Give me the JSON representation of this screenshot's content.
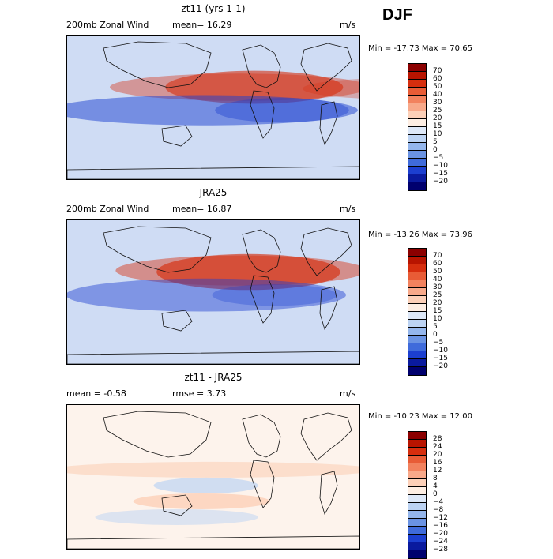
{
  "season": "DJF",
  "panels": [
    {
      "title": "zt11 (yrs 1-1)",
      "field_label": "200mb Zonal Wind",
      "stat1": "mean=  16.29",
      "stat2": "",
      "units": "m/s",
      "minmax": "Min = -17.73 Max =  70.65",
      "colorbar_labels": [
        "70",
        "60",
        "50",
        "40",
        "30",
        "25",
        "20",
        "15",
        "10",
        "5",
        "0",
        "−5",
        "−10",
        "−15",
        "−20"
      ],
      "colorbar_colors": [
        "#8b0000",
        "#b81400",
        "#d62e0e",
        "#e85c36",
        "#f2825e",
        "#f8a98a",
        "#fcd0b8",
        "#fdeee3",
        "#dde8f8",
        "#bcd3f3",
        "#94b6ec",
        "#6a93e3",
        "#3f6bdb",
        "#1c3fd0",
        "#0a1a9e",
        "#00006e"
      ],
      "gradients": [
        {
          "color": "#d62e0e",
          "bands": [
            [
              0.39,
              0.5,
              0.36,
              0.06,
              0.6
            ],
            [
              0.2,
              0.78,
              0.36,
              0.04,
              0.4
            ],
            [
              0.86,
              0.56,
              0.37,
              0.02,
              0.3
            ]
          ]
        },
        {
          "color": "#1c3fd0",
          "bands": [
            [
              0.0,
              0.94,
              0.52,
              0.05,
              0.5
            ],
            [
              0.56,
              0.35,
              0.52,
              0.03,
              0.4
            ]
          ]
        }
      ]
    },
    {
      "title": "JRA25",
      "field_label": "200mb Zonal Wind",
      "stat1": "mean=  16.87",
      "stat2": "",
      "units": "m/s",
      "minmax": "Min = -13.26 Max =  73.96",
      "colorbar_labels": [
        "70",
        "60",
        "50",
        "40",
        "30",
        "25",
        "20",
        "15",
        "10",
        "5",
        "0",
        "−5",
        "−10",
        "−15",
        "−20"
      ],
      "colorbar_colors": [
        "#8b0000",
        "#b81400",
        "#d62e0e",
        "#e85c36",
        "#f2825e",
        "#f8a98a",
        "#fcd0b8",
        "#fdeee3",
        "#dde8f8",
        "#bcd3f3",
        "#94b6ec",
        "#6a93e3",
        "#3f6bdb",
        "#1c3fd0",
        "#0a1a9e",
        "#00006e"
      ],
      "gradients": [
        {
          "color": "#d62e0e",
          "bands": [
            [
              0.36,
              0.52,
              0.36,
              0.07,
              0.65
            ],
            [
              0.22,
              0.75,
              0.35,
              0.05,
              0.45
            ]
          ]
        },
        {
          "color": "#1c3fd0",
          "bands": [
            [
              0.05,
              0.85,
              0.52,
              0.06,
              0.45
            ],
            [
              0.55,
              0.32,
              0.52,
              0.02,
              0.3
            ]
          ]
        }
      ]
    },
    {
      "title": "zt11 - JRA25",
      "field_label": "",
      "stat1": "mean =   -0.58",
      "stat2": "rmse =    3.73",
      "units": "m/s",
      "minmax": "Min = -10.23 Max =  12.00",
      "colorbar_labels": [
        "28",
        "24",
        "20",
        "16",
        "12",
        "8",
        "4",
        "0",
        "−4",
        "−8",
        "−12",
        "−16",
        "−20",
        "−24",
        "−28"
      ],
      "colorbar_colors": [
        "#8b0000",
        "#b81400",
        "#d62e0e",
        "#e85c36",
        "#f2825e",
        "#f8a98a",
        "#fcd0b8",
        "#fdeee3",
        "#dde8f8",
        "#bcd3f3",
        "#94b6ec",
        "#6a93e3",
        "#3f6bdb",
        "#1c3fd0",
        "#0a1a9e",
        "#00006e"
      ],
      "gradients": [
        {
          "color": "#fcd0b8",
          "bands": [
            [
              0.0,
              1.0,
              0.45,
              0.0,
              0.6
            ],
            [
              0.28,
              0.36,
              0.67,
              0.0,
              0.8
            ]
          ]
        },
        {
          "color": "#bcd3f3",
          "bands": [
            [
              0.35,
              0.25,
              0.56,
              0.0,
              0.7
            ],
            [
              0.15,
              0.45,
              0.78,
              0.0,
              0.5
            ]
          ]
        }
      ]
    }
  ]
}
